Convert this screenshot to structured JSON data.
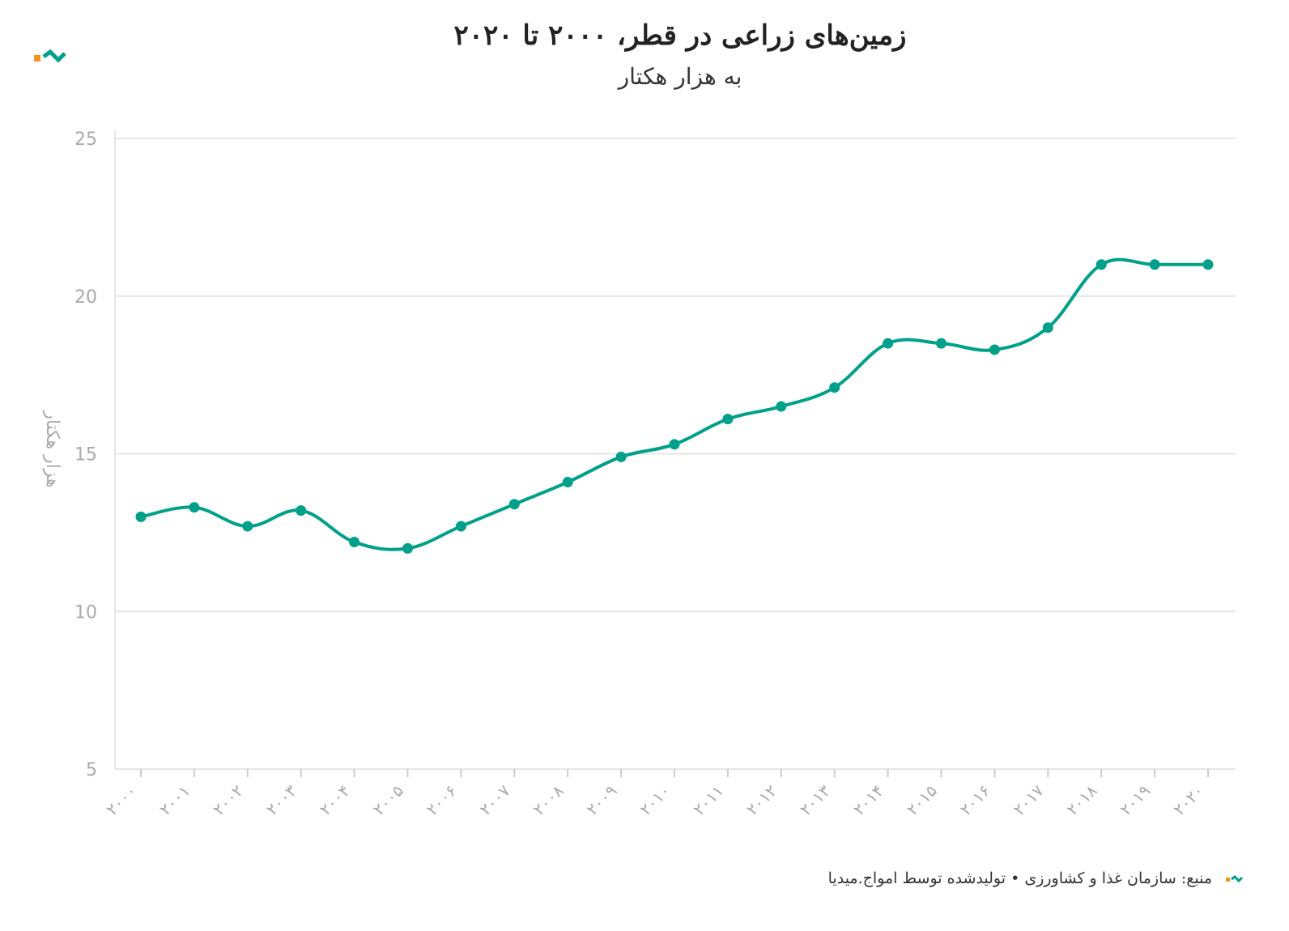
{
  "title": "زمین‌های زراعی در قطر، ۲۰۰۰ تا ۲۰۲۰",
  "subtitle": "به هزار هکتار",
  "footer": {
    "source_text": "منبع: سازمان غذا و کشاورزی • تولیدشده توسط امواج.میدیا"
  },
  "colors": {
    "line": "#00a08a",
    "logo_orange": "#f7941d",
    "logo_teal": "#00a08a",
    "grid": "#e6e6e6",
    "tick_text": "#aaaaaa"
  },
  "chart_data": {
    "type": "line",
    "ylabel": "هزار هکتار",
    "xlabel": "",
    "ylim": [
      5,
      25
    ],
    "yticks": [
      5,
      10,
      15,
      20,
      25
    ],
    "grid": true,
    "categories": [
      "۲۰۰۰",
      "۲۰۰۱",
      "۲۰۰۲",
      "۲۰۰۳",
      "۲۰۰۴",
      "۲۰۰۵",
      "۲۰۰۶",
      "۲۰۰۷",
      "۲۰۰۸",
      "۲۰۰۹",
      "۲۰۱۰",
      "۲۰۱۱",
      "۲۰۱۲",
      "۲۰۱۳",
      "۲۰۱۴",
      "۲۰۱۵",
      "۲۰۱۶",
      "۲۰۱۷",
      "۲۰۱۸",
      "۲۰۱۹",
      "۲۰۲۰"
    ],
    "x": [
      2000,
      2001,
      2002,
      2003,
      2004,
      2005,
      2006,
      2007,
      2008,
      2009,
      2010,
      2011,
      2012,
      2013,
      2014,
      2015,
      2016,
      2017,
      2018,
      2019,
      2020
    ],
    "values": [
      13.0,
      13.3,
      12.7,
      13.2,
      12.2,
      12.0,
      12.7,
      13.4,
      14.1,
      14.9,
      15.3,
      16.1,
      16.5,
      17.1,
      18.5,
      18.5,
      18.3,
      19.0,
      21.0,
      21.0,
      21.0
    ]
  }
}
